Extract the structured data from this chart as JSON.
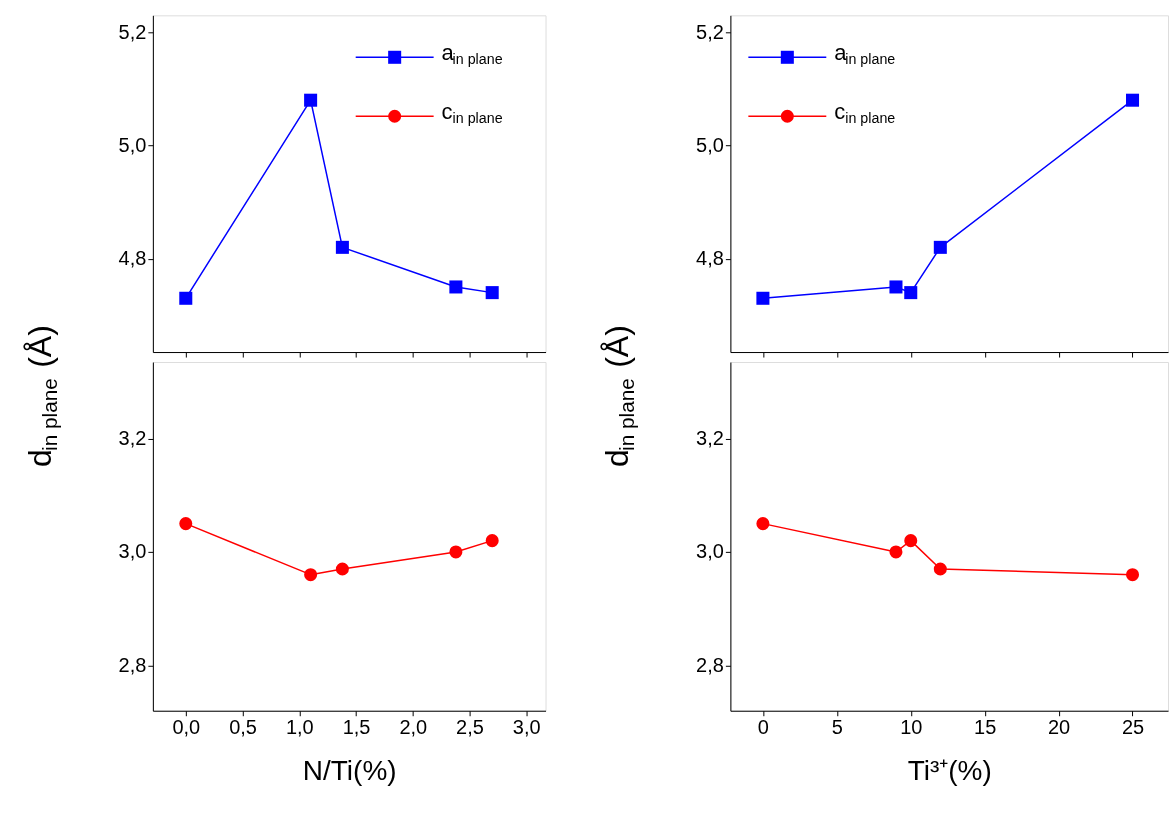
{
  "chart_data": [
    {
      "type": "line",
      "x": [
        0,
        1.1,
        1.38,
        2.38,
        2.7
      ],
      "xlim": [
        -0.29,
        3.17
      ],
      "xticks": [
        0,
        0.5,
        1,
        1.5,
        2,
        2.5,
        3
      ],
      "ylim": [
        4.635,
        5.23
      ],
      "yticks": [
        {
          "value": 4.8,
          "label": "4,8"
        },
        {
          "value": 5.0,
          "label": "5,0"
        },
        {
          "value": 5.2,
          "label": "5,2"
        }
      ],
      "tick_labels": "y",
      "legend": "top right",
      "series": [
        {
          "name": "a$_{in plane}$",
          "color": "#0000ff",
          "marker": "square",
          "values": [
            4.73,
            5.08,
            4.82,
            4.75,
            4.74
          ]
        }
      ]
    },
    {
      "type": "line",
      "ylabel": "d$_{in plane}$ (Å)",
      "xlabel": "N/Ti(%)",
      "legend": "top right",
      "x": [
        0,
        1.1,
        1.38,
        2.38,
        2.7
      ],
      "xlim": [
        -0.29,
        3.17
      ],
      "xticks": [
        {
          "value": 0,
          "label": "0,0"
        },
        {
          "value": 0.5,
          "label": "0,5"
        },
        {
          "value": 1,
          "label": "1,0"
        },
        {
          "value": 1.5,
          "label": "1,5"
        },
        {
          "value": 2,
          "label": "2,0"
        },
        {
          "value": 2.5,
          "label": "2,5"
        },
        {
          "value": 3,
          "label": "3,0"
        }
      ],
      "ylim": [
        2.72,
        3.335
      ],
      "yticks": [
        {
          "value": 2.8,
          "label": "2,8"
        },
        {
          "value": 3.0,
          "label": "3,0"
        },
        {
          "value": 3.2,
          "label": "3,2"
        }
      ],
      "series": [
        {
          "name": "c$_{in plane}$",
          "color": "#ff0000",
          "marker": "circle",
          "values": [
            3.05,
            2.96,
            2.97,
            3.0,
            3.02
          ]
        }
      ]
    },
    {
      "type": "line",
      "x": [
        0,
        9,
        10,
        12,
        25
      ],
      "xlim": [
        -2.2,
        27.4
      ],
      "xticks": [
        0,
        5,
        10,
        15,
        20,
        25
      ],
      "ylim": [
        4.635,
        5.23
      ],
      "yticks": [
        {
          "value": 4.8,
          "label": "4,8"
        },
        {
          "value": 5.0,
          "label": "5,0"
        },
        {
          "value": 5.2,
          "label": "5,2"
        }
      ],
      "tick_labels": "y",
      "legend": "top left",
      "series": [
        {
          "name": "a$_{in plane}$",
          "color": "#0000ff",
          "marker": "square",
          "values": [
            4.73,
            4.75,
            4.74,
            4.82,
            5.08
          ]
        }
      ]
    },
    {
      "type": "line",
      "ylabel": "d$_{in plane}$ (Å)",
      "xlabel": "Ti³⁺(%)",
      "legend": "top left",
      "x": [
        0,
        9,
        10,
        12,
        25
      ],
      "xlim": [
        -2.2,
        27.4
      ],
      "xticks": [
        0,
        5,
        10,
        15,
        20,
        25
      ],
      "ylim": [
        2.72,
        3.335
      ],
      "yticks": [
        {
          "value": 2.8,
          "label": "2,8"
        },
        {
          "value": 3.0,
          "label": "3,0"
        },
        {
          "value": 3.2,
          "label": "3,2"
        }
      ],
      "series": [
        {
          "name": "c$_{in plane}$",
          "color": "#ff0000",
          "marker": "circle",
          "values": [
            3.05,
            3.0,
            3.02,
            2.97,
            2.96
          ]
        }
      ]
    }
  ]
}
